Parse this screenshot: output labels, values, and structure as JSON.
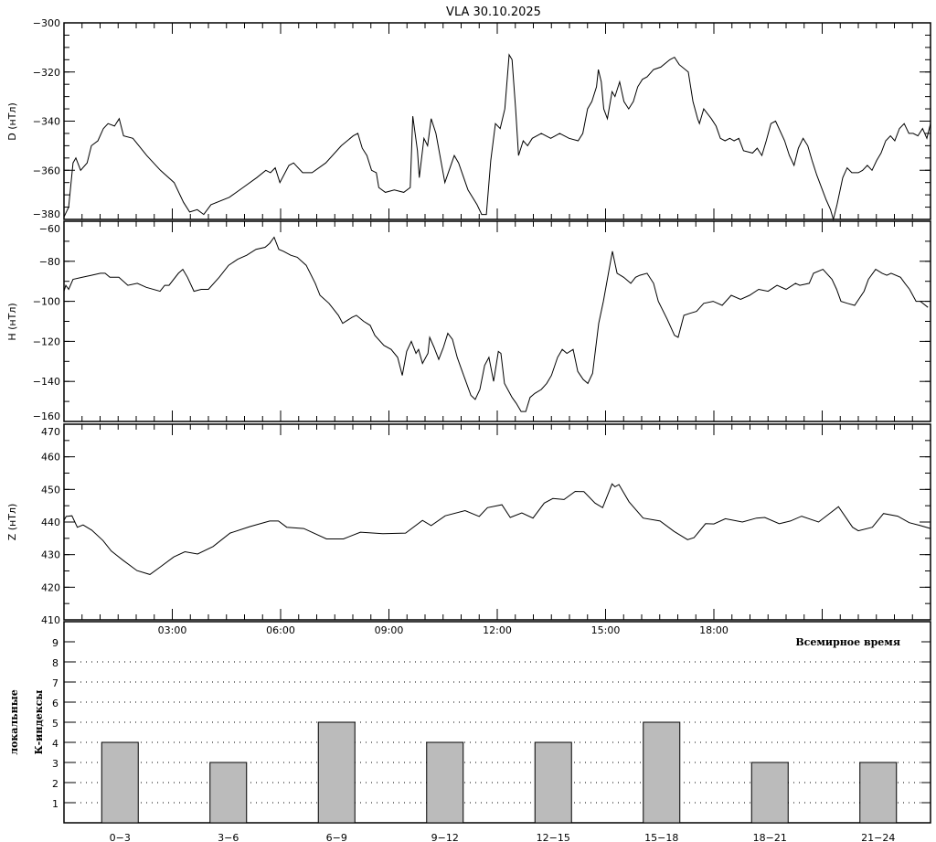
{
  "title": "VLA   30.10.2025",
  "time_axis_label": "Всемирное время",
  "chart_data": [
    {
      "type": "line",
      "ylabel": "D (нТл)",
      "ylim": [
        -380,
        -300
      ],
      "yticks": [
        -300,
        -320,
        -340,
        -360,
        -380
      ],
      "xlim": [
        0,
        24
      ],
      "series": [
        {
          "x": [
            0,
            0.13,
            0.25,
            0.33,
            0.46,
            0.64,
            0.76,
            0.94,
            1.09,
            1.22,
            1.4,
            1.53,
            1.65,
            1.91,
            2.29,
            2.67,
            3.05,
            3.31,
            3.48,
            3.69,
            3.87,
            4.07,
            4.58,
            4.96,
            5.34,
            5.59,
            5.72,
            5.85,
            5.98,
            6.23,
            6.36,
            6.61,
            6.87,
            7.25,
            7.68,
            8.01,
            8.14,
            8.26,
            8.39,
            8.52,
            8.65,
            8.72,
            8.9,
            9.15,
            9.41,
            9.59,
            9.66,
            9.79,
            9.84,
            9.97,
            10.07,
            10.17,
            10.3,
            10.55,
            10.81,
            10.93,
            11.19,
            11.44,
            11.57,
            11.7,
            11.82,
            11.95,
            12.08,
            12.21,
            12.33,
            12.41,
            12.51,
            12.59,
            12.72,
            12.84,
            12.97,
            13.22,
            13.48,
            13.73,
            13.99,
            14.24,
            14.37,
            14.5,
            14.62,
            14.75,
            14.8,
            14.88,
            14.95,
            15.05,
            15.18,
            15.26,
            15.39,
            15.51,
            15.64,
            15.77,
            15.89,
            16.02,
            16.15,
            16.33,
            16.53,
            16.78,
            16.91,
            17.04,
            17.29,
            17.42,
            17.55,
            17.6,
            17.72,
            17.93,
            18.06,
            18.18,
            18.31,
            18.44,
            18.56,
            18.69,
            18.82,
            19.07,
            19.2,
            19.33,
            19.45,
            19.58,
            19.71,
            19.96,
            20.09,
            20.22,
            20.34,
            20.47,
            20.6,
            20.72,
            20.85,
            20.98,
            21.11,
            21.23,
            21.31,
            21.41,
            21.57,
            21.69,
            21.82,
            22,
            22.12,
            22.25,
            22.38,
            22.51,
            22.63,
            22.76,
            22.89,
            23.01,
            23.14,
            23.27,
            23.4,
            23.52,
            23.65,
            23.78,
            23.9,
            24
          ],
          "y": [
            -379,
            -375,
            -357,
            -355,
            -360,
            -357,
            -350,
            -348,
            -343,
            -341,
            -342,
            -339,
            -346,
            -347,
            -354,
            -360,
            -365,
            -373,
            -377,
            -376,
            -378,
            -374,
            -371,
            -367,
            -363,
            -360,
            -361,
            -359,
            -365,
            -358,
            -357,
            -361,
            -361,
            -357,
            -350,
            -346,
            -345,
            -351,
            -354,
            -360,
            -361,
            -367,
            -369,
            -368,
            -369,
            -367,
            -338,
            -352,
            -363,
            -347,
            -350,
            -339,
            -345,
            -365,
            -354,
            -357,
            -368,
            -374,
            -378,
            -378,
            -356,
            -341,
            -343,
            -335,
            -313,
            -315,
            -335,
            -354,
            -348,
            -350,
            -347,
            -345,
            -347,
            -345,
            -347,
            -348,
            -345,
            -335,
            -332,
            -326,
            -319,
            -324,
            -335,
            -339,
            -328,
            -330,
            -324,
            -332,
            -335,
            -332,
            -326,
            -323,
            -322,
            -319,
            -318,
            -315,
            -314,
            -317,
            -320,
            -332,
            -339,
            -341,
            -335,
            -339,
            -342,
            -347,
            -348,
            -347,
            -348,
            -347,
            -352,
            -353,
            -351,
            -354,
            -348,
            -341,
            -340,
            -348,
            -354,
            -358,
            -351,
            -347,
            -350,
            -356,
            -362,
            -367,
            -372,
            -376,
            -380,
            -374,
            -363,
            -359,
            -361,
            -361,
            -360,
            -358,
            -360,
            -356,
            -353,
            -348,
            -346,
            -348,
            -343,
            -341,
            -345,
            -345,
            -346,
            -343,
            -347,
            -341
          ]
        }
      ]
    },
    {
      "type": "line",
      "ylabel": "H (нТл)",
      "ylim": [
        -160,
        -60
      ],
      "yticks": [
        -60,
        -80,
        -100,
        -120,
        -140,
        -160
      ],
      "xlim": [
        0,
        24
      ],
      "series": [
        {
          "x": [
            0,
            0.05,
            0.13,
            0.25,
            0.51,
            0.76,
            1.01,
            1.14,
            1.27,
            1.52,
            1.77,
            2.03,
            2.28,
            2.66,
            2.79,
            2.91,
            3.17,
            3.29,
            3.42,
            3.6,
            3.8,
            4,
            4.3,
            4.56,
            4.81,
            5.06,
            5.32,
            5.57,
            5.7,
            5.82,
            5.95,
            6.08,
            6.28,
            6.46,
            6.71,
            6.96,
            7.09,
            7.34,
            7.6,
            7.72,
            7.98,
            8.1,
            8.3,
            8.48,
            8.61,
            8.86,
            9.06,
            9.24,
            9.37,
            9.49,
            9.62,
            9.75,
            9.82,
            9.93,
            10.08,
            10.13,
            10.25,
            10.38,
            10.51,
            10.63,
            10.76,
            10.89,
            11.01,
            11.27,
            11.39,
            11.52,
            11.65,
            11.77,
            11.9,
            12.03,
            12.1,
            12.2,
            12.41,
            12.53,
            12.66,
            12.79,
            12.91,
            13.04,
            13.22,
            13.37,
            13.5,
            13.67,
            13.8,
            13.93,
            14.1,
            14.23,
            14.38,
            14.51,
            14.64,
            14.81,
            14.94,
            15.12,
            15.19,
            15.32,
            15.5,
            15.7,
            15.83,
            15.95,
            16.15,
            16.33,
            16.46,
            16.71,
            16.91,
            17.01,
            17.17,
            17.34,
            17.52,
            17.72,
            17.98,
            18.23,
            18.48,
            18.74,
            18.99,
            19.24,
            19.5,
            19.75,
            20,
            20.26,
            20.38,
            20.64,
            20.76,
            21.02,
            21.27,
            21.4,
            21.52,
            21.7,
            21.9,
            22.16,
            22.28,
            22.48,
            22.66,
            22.79,
            22.91,
            23.17,
            23.29,
            23.42,
            23.6,
            23.72,
            23.93
          ],
          "y": [
            -95,
            -92,
            -94,
            -89,
            -88,
            -87,
            -86,
            -86,
            -88,
            -88,
            -92,
            -91,
            -93,
            -95,
            -92,
            -92,
            -86,
            -84,
            -88,
            -95,
            -94,
            -94,
            -88,
            -82,
            -79,
            -77,
            -74,
            -73,
            -71,
            -68,
            -74,
            -75,
            -77,
            -78,
            -82,
            -91,
            -97,
            -101,
            -107,
            -111,
            -108,
            -107,
            -110,
            -112,
            -117,
            -122,
            -124,
            -128,
            -137,
            -125,
            -120,
            -126,
            -124,
            -131,
            -126,
            -118,
            -123,
            -129,
            -123,
            -116,
            -119,
            -128,
            -134,
            -147,
            -149,
            -144,
            -132,
            -128,
            -140,
            -125,
            -126,
            -141,
            -148,
            -151,
            -155,
            -155,
            -148,
            -146,
            -144,
            -141,
            -137,
            -128,
            -124,
            -126,
            -124,
            -135,
            -139,
            -141,
            -136,
            -111,
            -100,
            -82,
            -75,
            -86,
            -88,
            -91,
            -88,
            -87,
            -86,
            -91,
            -100,
            -109,
            -117,
            -118,
            -107,
            -106,
            -105,
            -101,
            -100,
            -102,
            -97,
            -99,
            -97,
            -94,
            -95,
            -92,
            -94,
            -91,
            -92,
            -91,
            -86,
            -84,
            -89,
            -94,
            -100,
            -101,
            -102,
            -95,
            -89,
            -84,
            -86,
            -87,
            -86,
            -88,
            -91,
            -94,
            -100,
            -100,
            -103
          ]
        }
      ]
    },
    {
      "type": "line",
      "ylabel": "Z (нТл)",
      "ylim": [
        410,
        470
      ],
      "yticks": [
        470,
        460,
        450,
        440,
        430,
        420,
        410
      ],
      "xlim": [
        0,
        24
      ],
      "xticklabels": [
        "03:00",
        "06:00",
        "09:00",
        "12:00",
        "15:00",
        "18:00"
      ],
      "series": [
        {
          "x": [
            0,
            0.06,
            0.22,
            0.37,
            0.53,
            0.77,
            1.08,
            1.31,
            1.63,
            2.02,
            2.38,
            2.65,
            3.04,
            3.35,
            3.7,
            4.13,
            4.6,
            5.15,
            5.7,
            5.94,
            6.17,
            6.64,
            7.27,
            7.74,
            8.21,
            8.83,
            9.46,
            9.93,
            10.17,
            10.56,
            11.11,
            11.5,
            11.73,
            12.13,
            12.36,
            12.68,
            12.99,
            13.3,
            13.54,
            13.85,
            14.16,
            14.4,
            14.71,
            14.92,
            15.18,
            15.26,
            15.37,
            15.65,
            16.04,
            16.51,
            16.9,
            17.27,
            17.45,
            17.77,
            18,
            18.32,
            18.79,
            19.18,
            19.41,
            19.81,
            20.12,
            20.43,
            20.9,
            21.45,
            21.84,
            22,
            22.39,
            22.7,
            23.09,
            23.41,
            23.72,
            24
          ],
          "y": [
            440.5,
            441.7,
            441.9,
            438.4,
            439.1,
            437.5,
            434.3,
            431.1,
            428.3,
            425.1,
            423.9,
            426.1,
            429.3,
            430.9,
            430.2,
            432.5,
            436.6,
            438.6,
            440.3,
            440.3,
            438.4,
            438,
            434.8,
            434.8,
            436.9,
            436.4,
            436.6,
            440.5,
            438.9,
            441.9,
            443.5,
            441.7,
            444.4,
            445.3,
            441.4,
            442.8,
            441.2,
            445.8,
            447.2,
            446.9,
            449.4,
            449.3,
            445.8,
            444.4,
            451.7,
            450.8,
            451.5,
            446.2,
            441.2,
            440.3,
            437.1,
            434.6,
            435.2,
            439.5,
            439.4,
            441,
            440,
            441.2,
            441.4,
            439.5,
            440.3,
            441.8,
            440,
            444.7,
            438.4,
            437.3,
            438.4,
            442.6,
            441.8,
            439.8,
            438.9,
            438
          ]
        }
      ]
    },
    {
      "type": "bar",
      "ylabel_line1": "локальные",
      "ylabel_line2": "К-индексы",
      "ylim": [
        0,
        9
      ],
      "yticks": [
        1,
        2,
        3,
        4,
        5,
        6,
        7,
        8,
        9
      ],
      "grid": "dotted horizontal",
      "categories": [
        "0-3",
        "3-6",
        "6-9",
        "9-12",
        "12-15",
        "15-18",
        "18-21",
        "21-24"
      ],
      "values": [
        4,
        3,
        5,
        4,
        4,
        5,
        3,
        3
      ],
      "bar_color": "#bbbbbb"
    }
  ]
}
